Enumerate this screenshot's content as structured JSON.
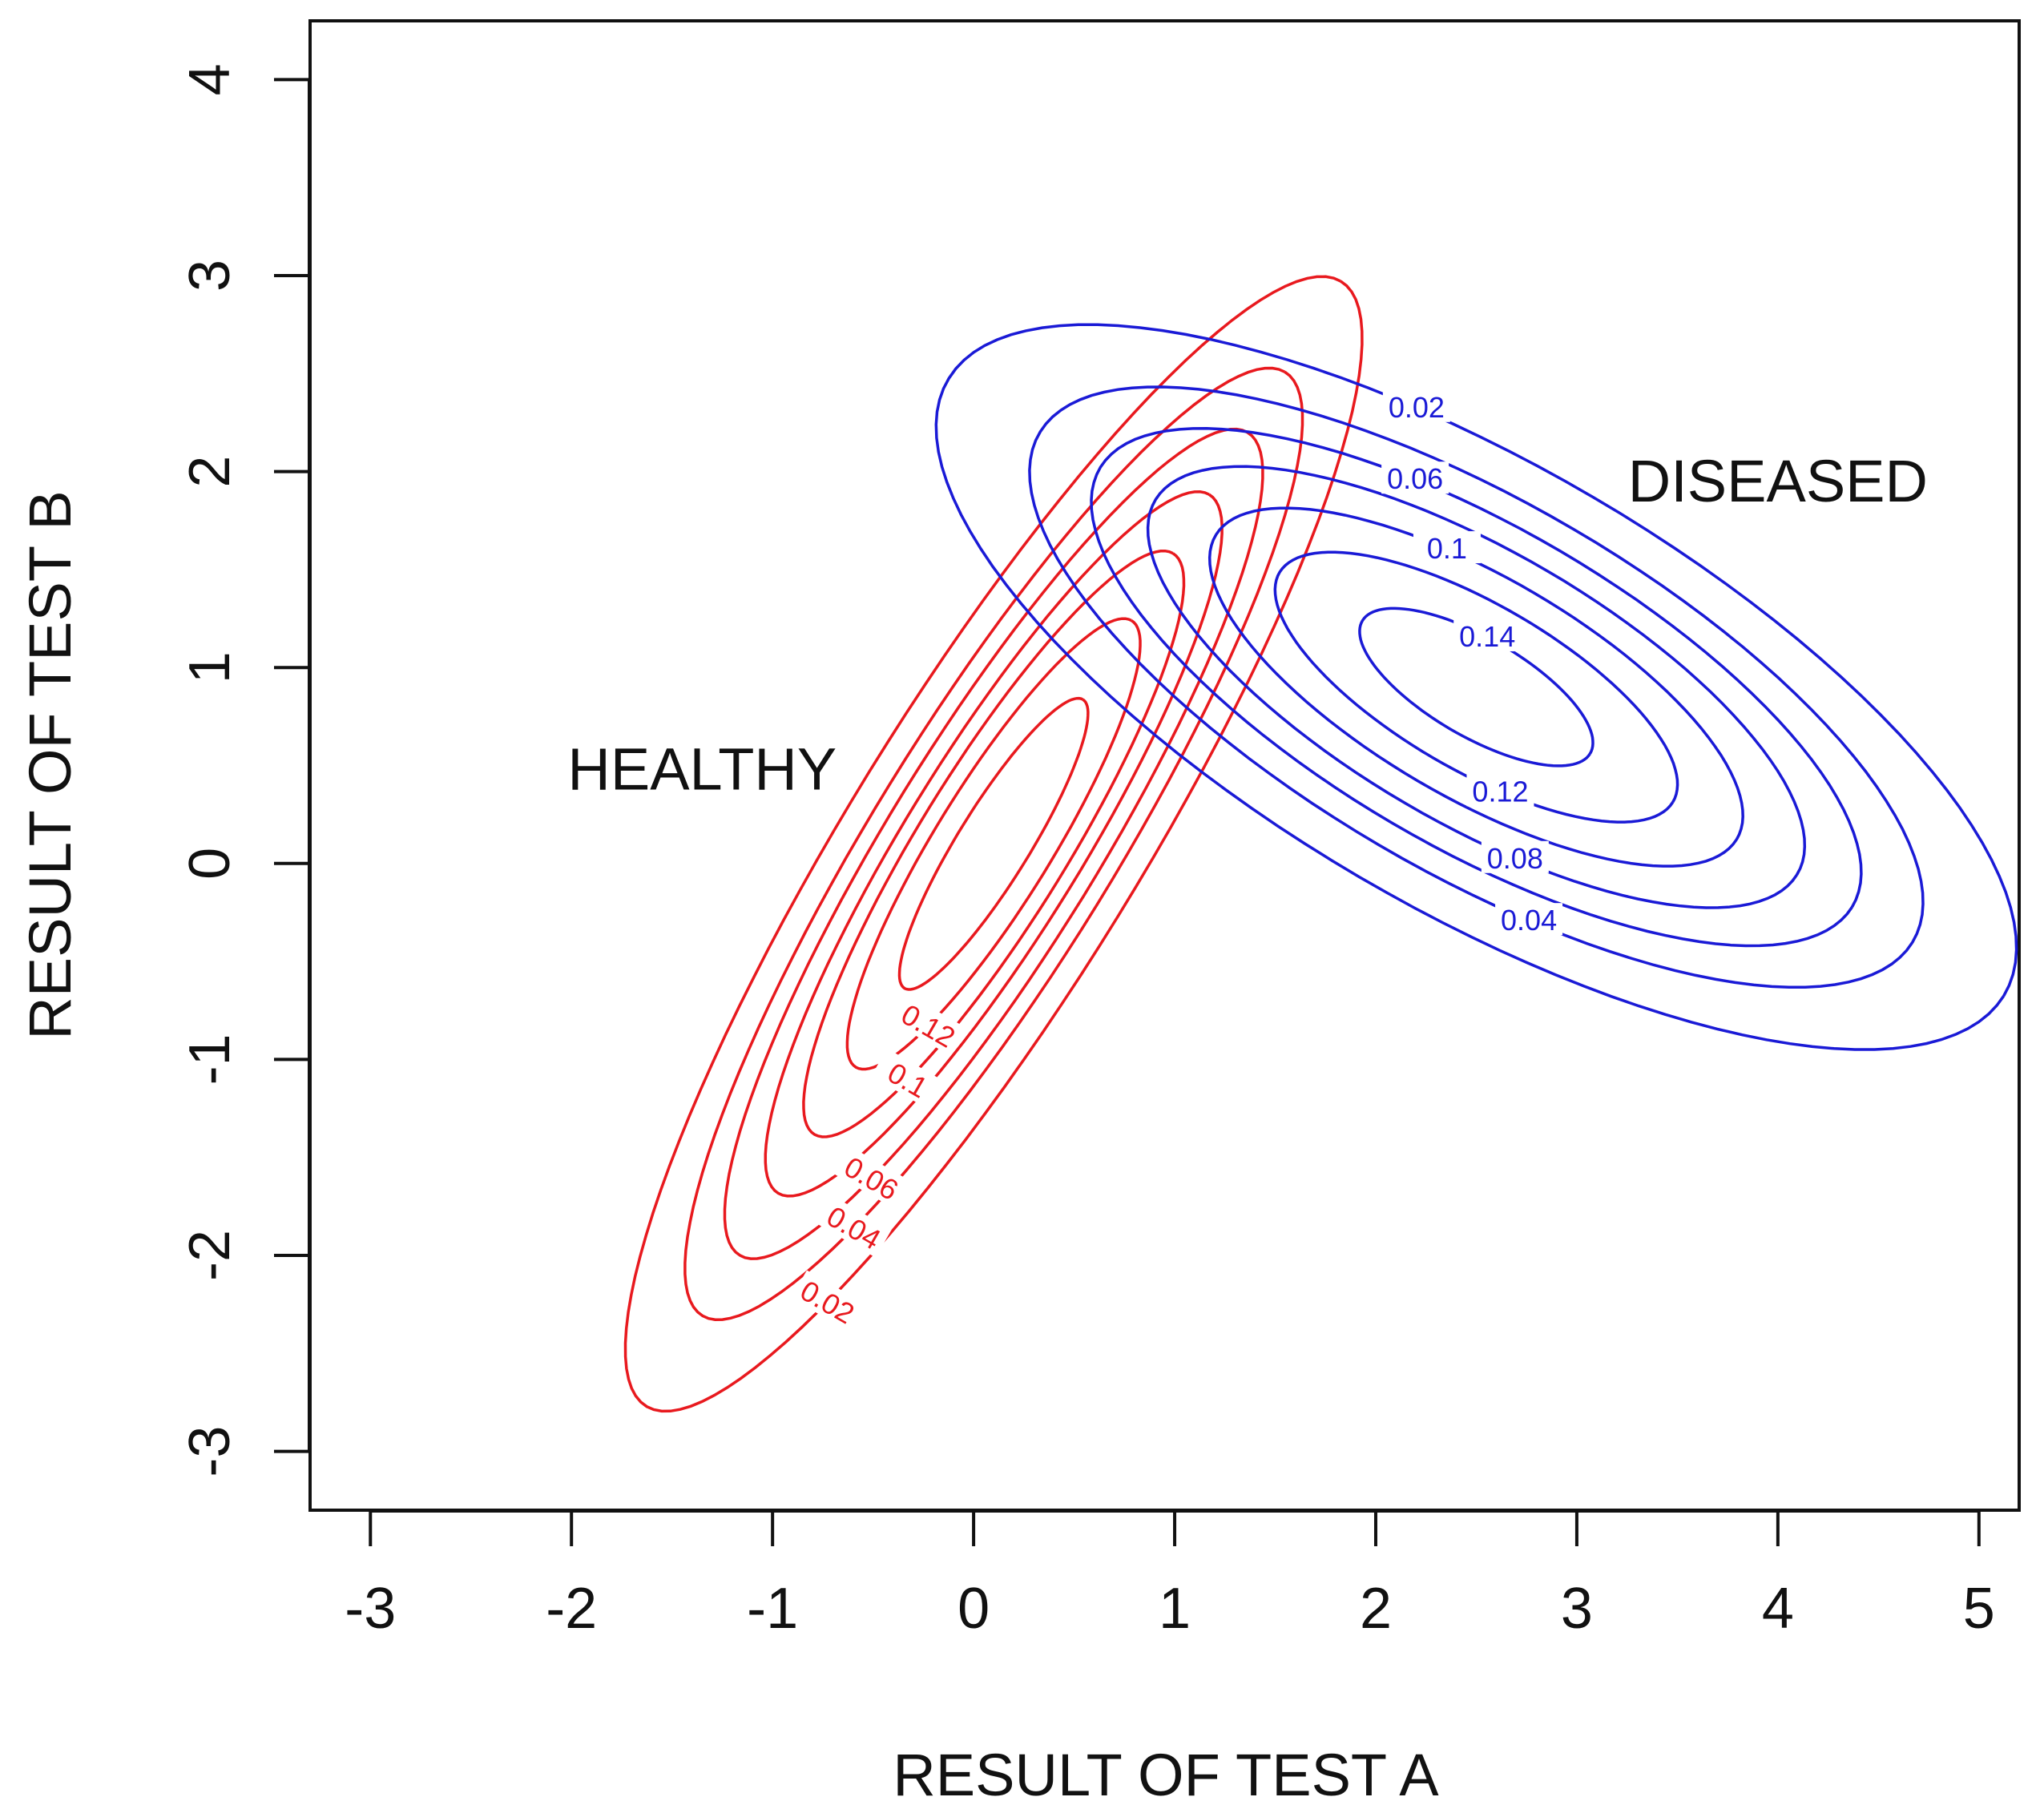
{
  "chart_data": {
    "type": "contour",
    "title": "",
    "xlabel": "RESULT OF TEST A",
    "ylabel": "RESULT OF TEST B",
    "xlim": [
      -3.3,
      5.2
    ],
    "ylim": [
      -3.3,
      4.3
    ],
    "xticks": [
      -3,
      -2,
      -1,
      0,
      1,
      2,
      3,
      4,
      5
    ],
    "yticks": [
      -3,
      -2,
      -1,
      0,
      1,
      2,
      3,
      4
    ],
    "xtick_labels": [
      "-3",
      "-2",
      "-1",
      "0",
      "1",
      "2",
      "3",
      "4",
      "5"
    ],
    "ytick_labels": [
      "-3",
      "-2",
      "-1",
      "0",
      "1",
      "2",
      "3",
      "4"
    ],
    "grid": false,
    "series": [
      {
        "name": "HEALTHY",
        "color": "#e8191e",
        "center": [
          0.1,
          0.1
        ],
        "levels": [
          0.02,
          0.04,
          0.06,
          0.08,
          0.1,
          0.12,
          0.14
        ],
        "labeled_levels": [
          "0.02",
          "0.04",
          "0.06",
          "0.1",
          "0.12"
        ],
        "semi_axes": [
          [
            3.35,
            0.72
          ],
          [
            2.81,
            0.6
          ],
          [
            2.45,
            0.52
          ],
          [
            2.08,
            0.44
          ],
          [
            1.73,
            0.37
          ],
          [
            1.33,
            0.29
          ],
          [
            0.86,
            0.18
          ]
        ],
        "major_axis_angle_deg": 59
      },
      {
        "name": "DISEASED",
        "color": "#1a1ad6",
        "center": [
          2.5,
          0.9
        ],
        "levels": [
          0.02,
          0.04,
          0.06,
          0.08,
          0.1,
          0.12,
          0.14
        ],
        "labeled_levels": [
          "0.02",
          "0.04",
          "0.06",
          "0.08",
          "0.1",
          "0.12",
          "0.14"
        ],
        "semi_axes": [
          [
            3.06,
            1.13
          ],
          [
            2.53,
            0.94
          ],
          [
            2.18,
            0.81
          ],
          [
            1.86,
            0.69
          ],
          [
            1.51,
            0.56
          ],
          [
            1.14,
            0.42
          ],
          [
            0.66,
            0.25
          ]
        ],
        "major_axis_angle_deg": -31
      }
    ],
    "annotations": [
      {
        "text": "HEALTHY",
        "x": -1.35,
        "y": 0.48
      },
      {
        "text": "DISEASED",
        "x": 4.0,
        "y": 1.95
      }
    ]
  }
}
